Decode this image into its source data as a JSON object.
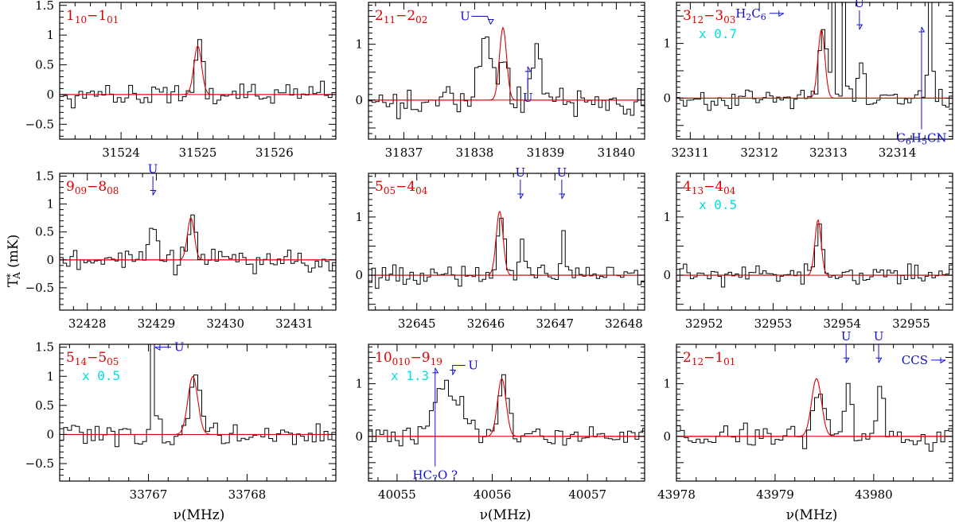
{
  "axes": {
    "xlabel": "ν(MHz)",
    "ylabel": "T*A (mK)"
  },
  "chart_data": [
    {
      "type": "line",
      "transition": {
        "base": "1",
        "sub": "10",
        "mid": "−1",
        "sub2": "01"
      },
      "scale": "",
      "xlim": [
        31523.2,
        31526.8
      ],
      "ylim": [
        -0.75,
        1.55
      ],
      "xticks": [
        31524,
        31525,
        31526
      ],
      "yticks": [
        -0.5,
        0,
        0.5,
        1,
        1.5
      ],
      "ytick_labels": [
        "−0.5",
        "0",
        "0.5",
        "1",
        "1.5"
      ],
      "gauss": {
        "center": 31525.0,
        "amp": 0.82,
        "width": 0.05
      },
      "spectrum": {
        "seed": 11,
        "noise": 0.15,
        "step": 0.05,
        "features": [
          [
            31525.0,
            0.95,
            0.05
          ]
        ]
      },
      "annotations": []
    },
    {
      "type": "line",
      "transition": {
        "base": "2",
        "sub": "11",
        "mid": "−2",
        "sub2": "02"
      },
      "scale": "",
      "xlim": [
        31836.5,
        31840.4
      ],
      "ylim": [
        -0.7,
        1.75
      ],
      "xticks": [
        31837,
        31838,
        31839,
        31840
      ],
      "yticks": [
        0,
        1
      ],
      "ytick_labels": [
        "0",
        "1"
      ],
      "gauss": {
        "center": 31838.4,
        "amp": 1.3,
        "width": 0.05
      },
      "spectrum": {
        "seed": 22,
        "noise": 0.22,
        "step": 0.05,
        "features": [
          [
            31838.15,
            1.1,
            0.1
          ],
          [
            31838.4,
            0.9,
            0.05
          ],
          [
            31838.85,
            1.1,
            0.05
          ]
        ]
      },
      "annotations": [
        {
          "text": "U",
          "x": 31838.0,
          "y": 1.5,
          "arrow": "right-down"
        },
        {
          "text": "U",
          "x": 31838.75,
          "y": 0.2,
          "arrow": "up"
        }
      ]
    },
    {
      "type": "line",
      "transition": {
        "base": "3",
        "sub": "12",
        "mid": "−3",
        "sub2": "03"
      },
      "scale": "x 0.7",
      "xlim": [
        32310.8,
        32314.8
      ],
      "ylim": [
        -0.75,
        1.75
      ],
      "xticks": [
        32311,
        32312,
        32313,
        32314
      ],
      "yticks": [
        0,
        1
      ],
      "ytick_labels": [
        "0",
        "1"
      ],
      "gauss": {
        "center": 32312.9,
        "amp": 1.25,
        "width": 0.05
      },
      "spectrum": {
        "seed": 33,
        "noise": 0.14,
        "step": 0.05,
        "features": [
          [
            32312.9,
            1.3,
            0.05
          ],
          [
            32313.05,
            3.0,
            0.02
          ],
          [
            32313.2,
            3.0,
            0.02
          ],
          [
            32313.45,
            0.7,
            0.04
          ],
          [
            32314.45,
            3.0,
            0.025
          ]
        ]
      },
      "annotations": [
        {
          "text": "H2C6",
          "x": 32312.1,
          "y": 1.55,
          "arrow": "right"
        },
        {
          "text": "U",
          "x": 32313.45,
          "y": 1.4,
          "arrow": "down"
        },
        {
          "text": "C6H5CN",
          "x": 32314.35,
          "y": -0.6,
          "arrow": "up-long"
        }
      ]
    },
    {
      "type": "line",
      "transition": {
        "base": "9",
        "sub": "09",
        "mid": "−8",
        "sub2": "08"
      },
      "scale": "",
      "xlim": [
        32427.6,
        32431.6
      ],
      "ylim": [
        -0.9,
        1.55
      ],
      "xticks": [
        32428,
        32429,
        32430,
        32431
      ],
      "yticks": [
        -0.5,
        0,
        0.5,
        1,
        1.5
      ],
      "ytick_labels": [
        "−0.5",
        "0",
        "0.5",
        "1",
        "1.5"
      ],
      "gauss": {
        "center": 32429.5,
        "amp": 0.75,
        "width": 0.05
      },
      "spectrum": {
        "seed": 44,
        "noise": 0.17,
        "step": 0.05,
        "features": [
          [
            32428.95,
            0.65,
            0.05
          ],
          [
            32429.5,
            0.75,
            0.05
          ]
        ]
      },
      "annotations": [
        {
          "text": "U",
          "x": 32428.95,
          "y": 1.3,
          "arrow": "down"
        }
      ]
    },
    {
      "type": "line",
      "transition": {
        "base": "5",
        "sub": "05",
        "mid": "−4",
        "sub2": "04"
      },
      "scale": "",
      "xlim": [
        32644.3,
        32648.3
      ],
      "ylim": [
        -0.6,
        1.75
      ],
      "xticks": [
        32645,
        32646,
        32647,
        32648
      ],
      "yticks": [
        0,
        1
      ],
      "ytick_labels": [
        "0",
        "1"
      ],
      "gauss": {
        "center": 32646.2,
        "amp": 1.1,
        "width": 0.05
      },
      "spectrum": {
        "seed": 55,
        "noise": 0.14,
        "step": 0.05,
        "features": [
          [
            32646.2,
            1.1,
            0.05
          ],
          [
            32646.5,
            0.65,
            0.03
          ],
          [
            32647.1,
            0.7,
            0.03
          ]
        ]
      },
      "annotations": [
        {
          "text": "U",
          "x": 32646.5,
          "y": 1.45,
          "arrow": "down"
        },
        {
          "text": "U",
          "x": 32647.1,
          "y": 1.45,
          "arrow": "down"
        }
      ]
    },
    {
      "type": "line",
      "transition": {
        "base": "4",
        "sub": "13",
        "mid": "−4",
        "sub2": "04"
      },
      "scale": "x 0.5",
      "xlim": [
        32951.6,
        32955.6
      ],
      "ylim": [
        -0.6,
        1.75
      ],
      "xticks": [
        32952,
        32953,
        32954,
        32955
      ],
      "yticks": [
        0,
        1
      ],
      "ytick_labels": [
        "0",
        "1"
      ],
      "gauss": {
        "center": 32953.65,
        "amp": 0.95,
        "width": 0.045
      },
      "spectrum": {
        "seed": 66,
        "noise": 0.14,
        "step": 0.05,
        "features": [
          [
            32953.65,
            1.0,
            0.045
          ]
        ]
      },
      "annotations": []
    },
    {
      "type": "line",
      "transition": {
        "base": "5",
        "sub": "14",
        "mid": "−5",
        "sub2": "05"
      },
      "scale": "x 0.5",
      "xlim": [
        33766.1,
        33768.9
      ],
      "ylim": [
        -0.8,
        1.55
      ],
      "xticks": [
        33767,
        33768
      ],
      "yticks": [
        -0.5,
        0,
        0.5,
        1,
        1.5
      ],
      "ytick_labels": [
        "−0.5",
        "0",
        "0.5",
        "1",
        "1.5"
      ],
      "gauss": {
        "center": 33767.45,
        "amp": 1.0,
        "width": 0.05
      },
      "spectrum": {
        "seed": 77,
        "noise": 0.17,
        "step": 0.04,
        "features": [
          [
            33767.03,
            2.0,
            0.015
          ],
          [
            33767.45,
            0.9,
            0.05
          ]
        ]
      },
      "annotations": [
        {
          "text": "U",
          "x": 33767.1,
          "y": 1.5,
          "arrow": "left"
        }
      ]
    },
    {
      "type": "line",
      "transition": {
        "base": "10",
        "sub": "010",
        "mid": "−9",
        "sub2": "19"
      },
      "scale": "x 1.3",
      "xlim": [
        40054.7,
        40057.6
      ],
      "ylim": [
        -0.85,
        1.75
      ],
      "xticks": [
        40055,
        40056,
        40057
      ],
      "yticks": [
        0,
        1
      ],
      "ytick_labels": [
        "0",
        "1"
      ],
      "gauss": {
        "center": 40056.1,
        "amp": 1.1,
        "width": 0.045
      },
      "spectrum": {
        "seed": 88,
        "noise": 0.15,
        "step": 0.04,
        "features": [
          [
            40055.45,
            0.9,
            0.1
          ],
          [
            40055.65,
            0.6,
            0.08
          ],
          [
            40056.1,
            1.05,
            0.045
          ]
        ]
      },
      "annotations": [
        {
          "text": "U",
          "x": 40055.55,
          "y": 1.35,
          "arrow": "left-down"
        },
        {
          "text": "HC7O ?",
          "x": 40055.4,
          "y": -0.6,
          "arrow": "up-long"
        }
      ]
    },
    {
      "type": "line",
      "transition": {
        "base": "2",
        "sub": "12",
        "mid": "−1",
        "sub2": "01"
      },
      "scale": "",
      "xlim": [
        43978.0,
        43980.8
      ],
      "ylim": [
        -0.85,
        1.75
      ],
      "xticks": [
        43978,
        43979,
        43980
      ],
      "yticks": [
        0,
        1
      ],
      "ytick_labels": [
        "0",
        "1"
      ],
      "gauss": {
        "center": 43979.42,
        "amp": 1.1,
        "width": 0.05
      },
      "spectrum": {
        "seed": 99,
        "noise": 0.2,
        "step": 0.04,
        "features": [
          [
            43979.42,
            1.0,
            0.05
          ],
          [
            43979.72,
            1.05,
            0.03
          ],
          [
            43980.05,
            1.15,
            0.03
          ]
        ]
      },
      "annotations": [
        {
          "text": "U",
          "x": 43979.72,
          "y": 1.55,
          "arrow": "down"
        },
        {
          "text": "U",
          "x": 43980.05,
          "y": 1.55,
          "arrow": "down"
        },
        {
          "text": "CCS",
          "x": 43980.55,
          "y": 1.45,
          "arrow": "right"
        }
      ]
    }
  ]
}
